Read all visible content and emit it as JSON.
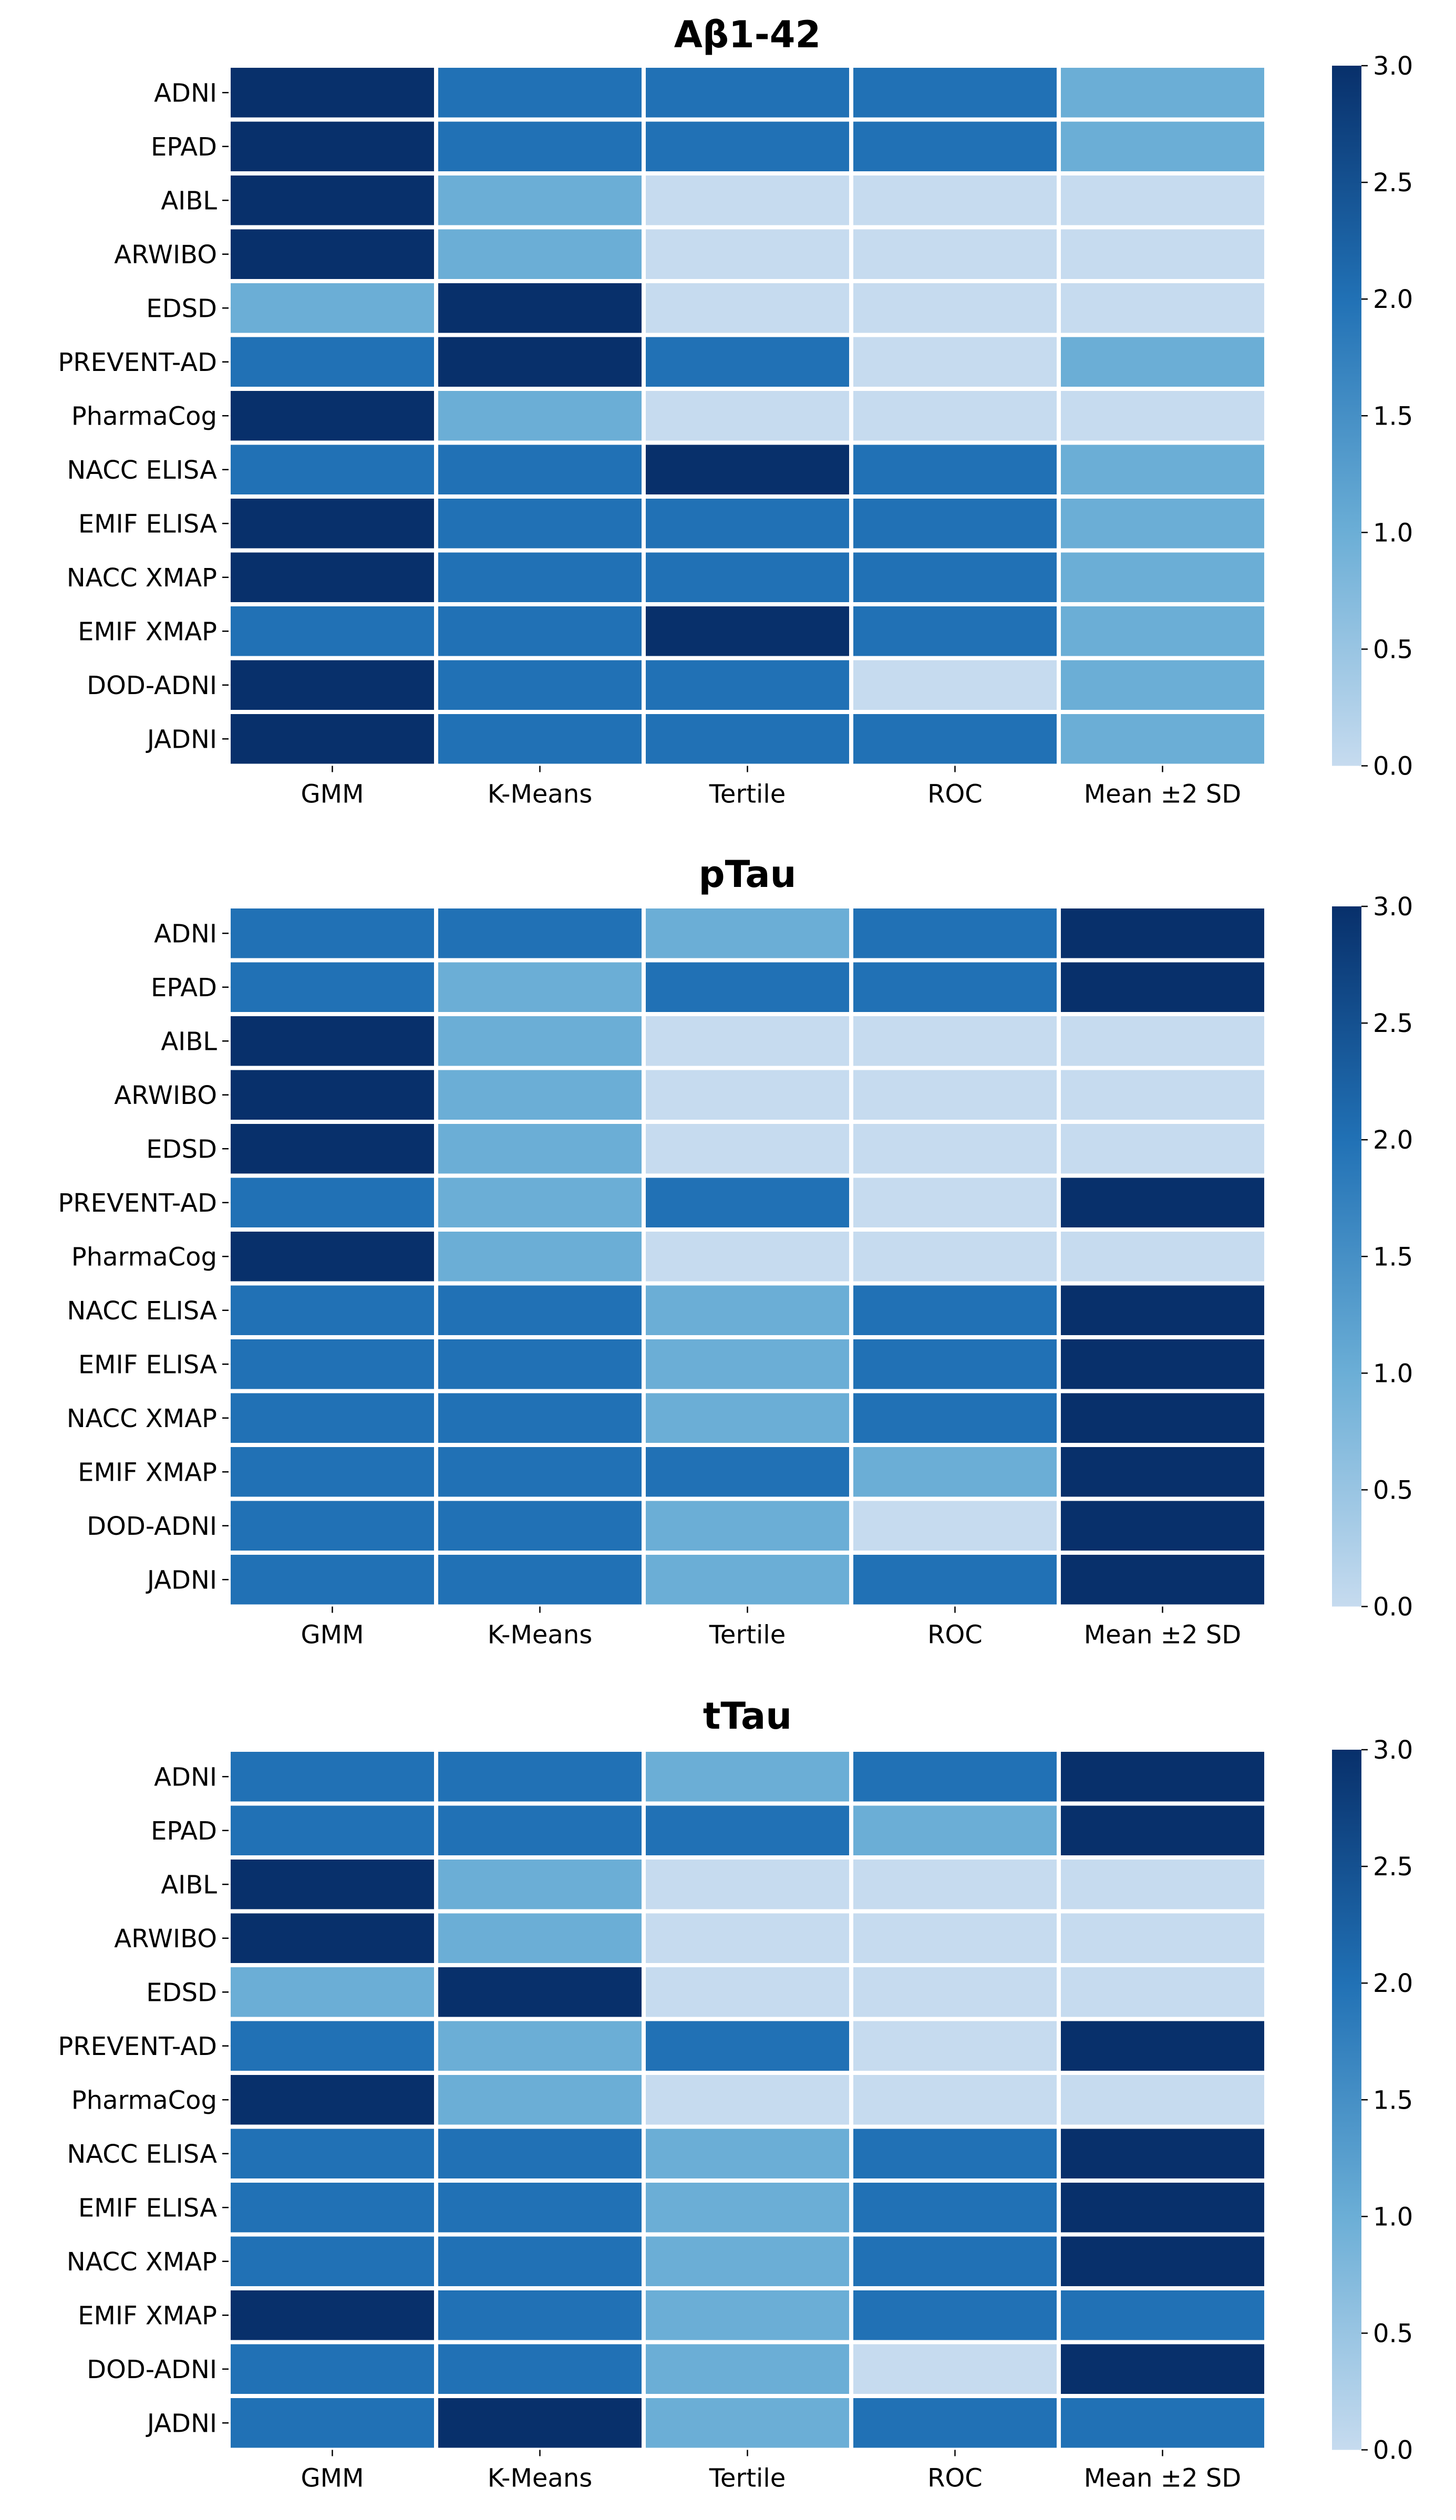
{
  "colormap": {
    "name": "Blues",
    "vmin": 0,
    "vmax": 3,
    "stops": [
      "#c6dbef",
      "#6baed6",
      "#2171b5",
      "#08306b"
    ]
  },
  "chart_data": [
    {
      "type": "heatmap",
      "title": "Aβ1-42",
      "columns": [
        "GMM",
        "K-Means",
        "Tertile",
        "ROC",
        "Mean ±2 SD"
      ],
      "rows": [
        "ADNI",
        "EPAD",
        "AIBL",
        "ARWIBO",
        "EDSD",
        "PREVENT-AD",
        "PharmaCog",
        "NACC ELISA",
        "EMIF ELISA",
        "NACC XMAP",
        "EMIF XMAP",
        "DOD-ADNI",
        "JADNI"
      ],
      "values": [
        [
          3,
          2,
          2,
          2,
          1
        ],
        [
          3,
          2,
          2,
          2,
          1
        ],
        [
          3,
          1,
          0,
          0,
          0
        ],
        [
          3,
          1,
          0,
          0,
          0
        ],
        [
          1,
          3,
          0,
          0,
          0
        ],
        [
          2,
          3,
          2,
          0,
          1
        ],
        [
          3,
          1,
          0,
          0,
          0
        ],
        [
          2,
          2,
          3,
          2,
          1
        ],
        [
          3,
          2,
          2,
          2,
          1
        ],
        [
          3,
          2,
          2,
          2,
          1
        ],
        [
          2,
          2,
          3,
          2,
          1
        ],
        [
          3,
          2,
          2,
          0,
          1
        ],
        [
          3,
          2,
          2,
          2,
          1
        ]
      ],
      "colorbar": {
        "range": [
          0,
          3
        ],
        "ticks": [
          "0.0",
          "0.5",
          "1.0",
          "1.5",
          "2.0",
          "2.5",
          "3.0"
        ]
      }
    },
    {
      "type": "heatmap",
      "title": "pTau",
      "columns": [
        "GMM",
        "K-Means",
        "Tertile",
        "ROC",
        "Mean ±2 SD"
      ],
      "rows": [
        "ADNI",
        "EPAD",
        "AIBL",
        "ARWIBO",
        "EDSD",
        "PREVENT-AD",
        "PharmaCog",
        "NACC ELISA",
        "EMIF ELISA",
        "NACC XMAP",
        "EMIF XMAP",
        "DOD-ADNI",
        "JADNI"
      ],
      "values": [
        [
          2,
          2,
          1,
          2,
          3
        ],
        [
          2,
          1,
          2,
          2,
          3
        ],
        [
          3,
          1,
          0,
          0,
          0
        ],
        [
          3,
          1,
          0,
          0,
          0
        ],
        [
          3,
          1,
          0,
          0,
          0
        ],
        [
          2,
          1,
          2,
          0,
          3
        ],
        [
          3,
          1,
          0,
          0,
          0
        ],
        [
          2,
          2,
          1,
          2,
          3
        ],
        [
          2,
          2,
          1,
          2,
          3
        ],
        [
          2,
          2,
          1,
          2,
          3
        ],
        [
          2,
          2,
          2,
          1,
          3
        ],
        [
          2,
          2,
          1,
          0,
          3
        ],
        [
          2,
          2,
          1,
          2,
          3
        ]
      ],
      "colorbar": {
        "range": [
          0,
          3
        ],
        "ticks": [
          "0.0",
          "0.5",
          "1.0",
          "1.5",
          "2.0",
          "2.5",
          "3.0"
        ]
      }
    },
    {
      "type": "heatmap",
      "title": "tTau",
      "columns": [
        "GMM",
        "K-Means",
        "Tertile",
        "ROC",
        "Mean ±2 SD"
      ],
      "rows": [
        "ADNI",
        "EPAD",
        "AIBL",
        "ARWIBO",
        "EDSD",
        "PREVENT-AD",
        "PharmaCog",
        "NACC ELISA",
        "EMIF ELISA",
        "NACC XMAP",
        "EMIF XMAP",
        "DOD-ADNI",
        "JADNI"
      ],
      "values": [
        [
          2,
          2,
          1,
          2,
          3
        ],
        [
          2,
          2,
          2,
          1,
          3
        ],
        [
          3,
          1,
          0,
          0,
          0
        ],
        [
          3,
          1,
          0,
          0,
          0
        ],
        [
          1,
          3,
          0,
          0,
          0
        ],
        [
          2,
          1,
          2,
          0,
          3
        ],
        [
          3,
          1,
          0,
          0,
          0
        ],
        [
          2,
          2,
          1,
          2,
          3
        ],
        [
          2,
          2,
          1,
          2,
          3
        ],
        [
          2,
          2,
          1,
          2,
          3
        ],
        [
          3,
          2,
          1,
          2,
          2
        ],
        [
          2,
          2,
          1,
          0,
          3
        ],
        [
          2,
          3,
          1,
          2,
          2
        ]
      ],
      "colorbar": {
        "range": [
          0,
          3
        ],
        "ticks": [
          "0.0",
          "0.5",
          "1.0",
          "1.5",
          "2.0",
          "2.5",
          "3.0"
        ]
      }
    }
  ]
}
